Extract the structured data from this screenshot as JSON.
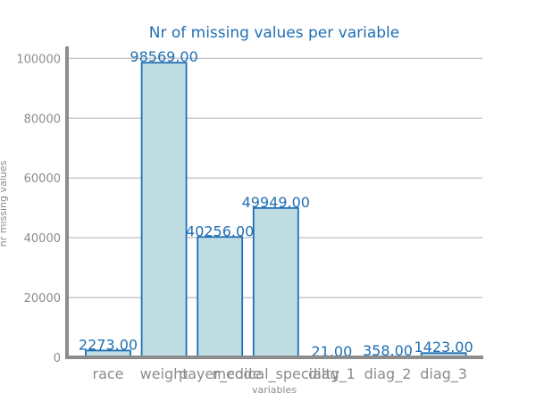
{
  "chart_data": {
    "type": "bar",
    "title": "Nr of missing values per variable",
    "xlabel": "variables",
    "ylabel": "nr missing values",
    "categories": [
      "race",
      "weight",
      "payer_code",
      "medical_specialty",
      "diag_1",
      "diag_2",
      "diag_3"
    ],
    "values": [
      2273,
      98569,
      40256,
      49949,
      21,
      358,
      1423
    ],
    "value_labels": [
      "2273.00",
      "98569.00",
      "40256.00",
      "49949.00",
      "21.00",
      "358.00",
      "1423.00"
    ],
    "ylim": [
      0,
      104000
    ],
    "yticks": [
      0,
      20000,
      40000,
      60000,
      80000,
      100000
    ],
    "ytick_labels": [
      "0",
      "20000",
      "40000",
      "60000",
      "80000",
      "100000"
    ],
    "grid": true,
    "colors": {
      "bar_fill": "#bfdde2",
      "bar_edge": "#1f6fb4",
      "text_accent": "#1f6fb4",
      "axis": "#8c8c8c"
    }
  }
}
